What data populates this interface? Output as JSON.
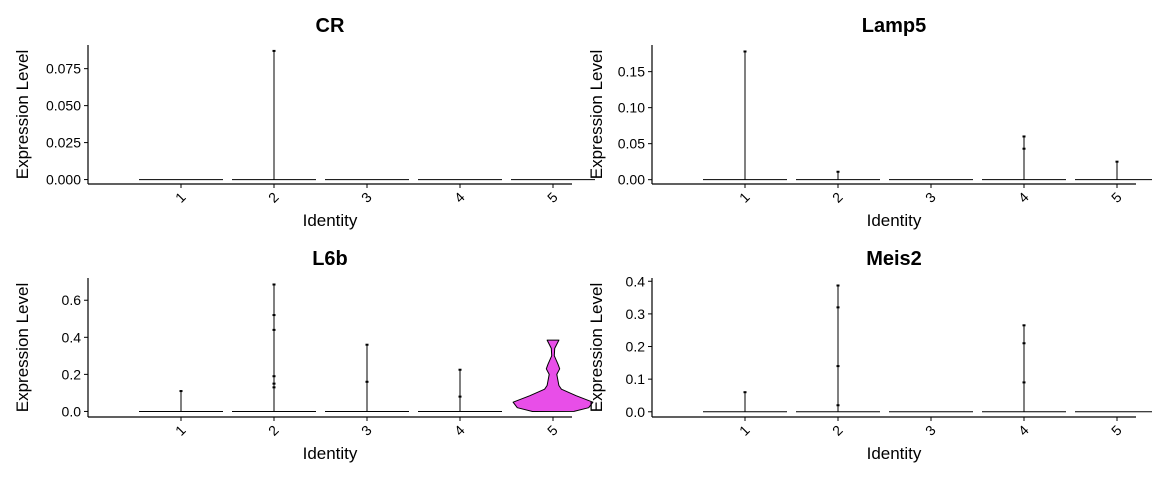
{
  "chart_data": [
    {
      "type": "violin",
      "title": "CR",
      "xlabel": "Identity",
      "ylabel": "Expression Level",
      "categories": [
        "1",
        "2",
        "3",
        "4",
        "5"
      ],
      "ylim": [
        -0.003,
        0.091
      ],
      "yticks": [
        "0.000",
        "0.025",
        "0.050",
        "0.075"
      ],
      "series": [
        {
          "category": "1",
          "max": 0.0,
          "points": [],
          "fill": false
        },
        {
          "category": "2",
          "max": 0.087,
          "points": [
            0.087
          ],
          "fill": false
        },
        {
          "category": "3",
          "max": 0.0,
          "points": [],
          "fill": false
        },
        {
          "category": "4",
          "max": 0.0,
          "points": [],
          "fill": false
        },
        {
          "category": "5",
          "max": 0.0,
          "points": [],
          "fill": false
        }
      ]
    },
    {
      "type": "violin",
      "title": "Lamp5",
      "xlabel": "Identity",
      "ylabel": "Expression Level",
      "categories": [
        "1",
        "2",
        "3",
        "4",
        "5"
      ],
      "ylim": [
        -0.006,
        0.187
      ],
      "yticks": [
        "0.00",
        "0.05",
        "0.10",
        "0.15"
      ],
      "series": [
        {
          "category": "1",
          "max": 0.178,
          "points": [
            0.178
          ],
          "fill": false
        },
        {
          "category": "2",
          "max": 0.011,
          "points": [
            0.011
          ],
          "fill": false
        },
        {
          "category": "3",
          "max": 0.0,
          "points": [],
          "fill": false
        },
        {
          "category": "4",
          "max": 0.06,
          "points": [
            0.06,
            0.043
          ],
          "fill": false
        },
        {
          "category": "5",
          "max": 0.025,
          "points": [
            0.025
          ],
          "fill": false
        }
      ]
    },
    {
      "type": "violin",
      "title": "L6b",
      "xlabel": "Identity",
      "ylabel": "Expression Level",
      "categories": [
        "1",
        "2",
        "3",
        "4",
        "5"
      ],
      "ylim": [
        -0.03,
        0.72
      ],
      "yticks": [
        "0.0",
        "0.2",
        "0.4",
        "0.6"
      ],
      "series": [
        {
          "category": "1",
          "max": 0.11,
          "points": [
            0.11
          ],
          "fill": false
        },
        {
          "category": "2",
          "max": 0.685,
          "points": [
            0.685,
            0.52,
            0.44,
            0.19,
            0.15,
            0.13
          ],
          "fill": false
        },
        {
          "category": "3",
          "max": 0.36,
          "points": [
            0.36,
            0.16
          ],
          "fill": false
        },
        {
          "category": "4",
          "max": 0.225,
          "points": [
            0.225,
            0.08
          ],
          "fill": false
        },
        {
          "category": "5",
          "max": 0.385,
          "points": [],
          "fill": true,
          "fill_color": "#e84ee8"
        }
      ]
    },
    {
      "type": "violin",
      "title": "Meis2",
      "xlabel": "Identity",
      "ylabel": "Expression Level",
      "categories": [
        "1",
        "2",
        "3",
        "4",
        "5"
      ],
      "ylim": [
        -0.016,
        0.41
      ],
      "yticks": [
        "0.0",
        "0.1",
        "0.2",
        "0.3",
        "0.4"
      ],
      "series": [
        {
          "category": "1",
          "max": 0.06,
          "points": [
            0.06
          ],
          "fill": false
        },
        {
          "category": "2",
          "max": 0.387,
          "points": [
            0.387,
            0.32,
            0.14,
            0.02
          ],
          "fill": false
        },
        {
          "category": "3",
          "max": 0.0,
          "points": [],
          "fill": false
        },
        {
          "category": "4",
          "max": 0.265,
          "points": [
            0.265,
            0.21,
            0.09
          ],
          "fill": false
        },
        {
          "category": "5",
          "max": 0.0,
          "points": [],
          "fill": false
        }
      ]
    }
  ]
}
